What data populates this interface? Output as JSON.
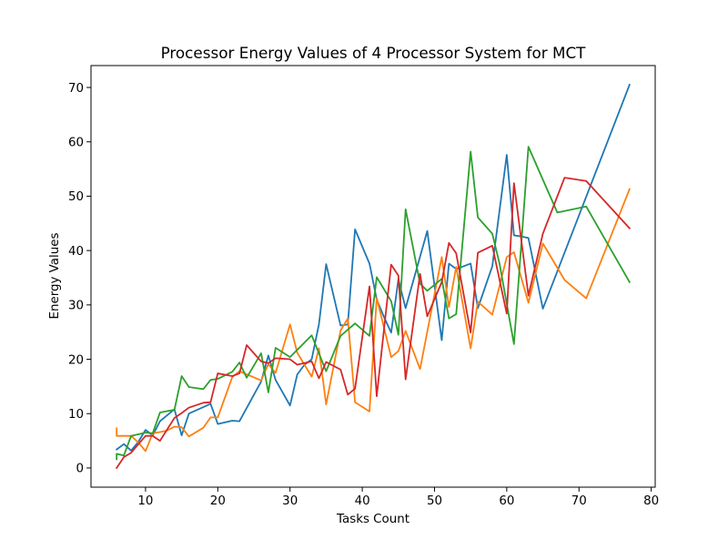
{
  "chart_data": {
    "type": "line",
    "title": "Processor Energy Values of 4 Processor System for MCT",
    "xlabel": "Tasks Count",
    "ylabel": "Energy Values",
    "xlim": [
      2.45,
      80.55
    ],
    "ylim": [
      -3.53,
      74.03
    ],
    "xticks": [
      10,
      20,
      30,
      40,
      50,
      60,
      70,
      80
    ],
    "yticks": [
      0,
      10,
      20,
      30,
      40,
      50,
      60,
      70
    ],
    "grid": false,
    "series": [
      {
        "color": "#1f77b4",
        "points": [
          [
            6,
            3.4
          ],
          [
            7,
            4.4
          ],
          [
            8,
            3.2
          ],
          [
            9,
            4.8
          ],
          [
            10,
            7.0
          ],
          [
            11,
            6.0
          ],
          [
            12,
            8.6
          ],
          [
            14,
            10.8
          ],
          [
            15,
            6.0
          ],
          [
            16,
            10.0
          ],
          [
            18,
            11.2
          ],
          [
            19,
            11.8
          ],
          [
            20,
            8.1
          ],
          [
            22,
            8.7
          ],
          [
            23,
            8.6
          ],
          [
            26,
            15.9
          ],
          [
            27,
            20.7
          ],
          [
            28,
            16.2
          ],
          [
            30,
            11.5
          ],
          [
            31,
            17.2
          ],
          [
            32,
            19.0
          ],
          [
            33,
            20.0
          ],
          [
            34,
            26.4
          ],
          [
            35,
            37.5
          ],
          [
            37,
            26.2
          ],
          [
            38,
            26.4
          ],
          [
            39,
            43.9
          ],
          [
            41,
            37.6
          ],
          [
            42,
            31.0
          ],
          [
            43,
            27.8
          ],
          [
            44,
            24.9
          ],
          [
            45,
            34.7
          ],
          [
            46,
            29.4
          ],
          [
            49,
            43.6
          ],
          [
            51,
            23.5
          ],
          [
            52,
            37.6
          ],
          [
            53,
            36.6
          ],
          [
            55,
            37.6
          ],
          [
            56,
            29.4
          ],
          [
            58,
            37.1
          ],
          [
            60,
            57.6
          ],
          [
            61,
            42.8
          ],
          [
            62,
            42.6
          ],
          [
            63,
            42.3
          ],
          [
            65,
            29.3
          ],
          [
            77,
            70.5
          ]
        ]
      },
      {
        "color": "#ff7f0e",
        "points": [
          [
            6,
            7.3
          ],
          [
            6,
            5.9
          ],
          [
            8,
            5.9
          ],
          [
            9,
            4.7
          ],
          [
            10,
            3.1
          ],
          [
            11,
            6.4
          ],
          [
            12,
            6.6
          ],
          [
            13,
            6.9
          ],
          [
            14,
            7.6
          ],
          [
            15,
            7.5
          ],
          [
            16,
            5.8
          ],
          [
            18,
            7.4
          ],
          [
            19,
            9.3
          ],
          [
            20,
            9.3
          ],
          [
            22,
            16.7
          ],
          [
            23,
            17.8
          ],
          [
            26,
            16.1
          ],
          [
            27,
            19.1
          ],
          [
            28,
            17.5
          ],
          [
            30,
            26.4
          ],
          [
            31,
            21.2
          ],
          [
            33,
            16.8
          ],
          [
            34,
            22.0
          ],
          [
            35,
            11.7
          ],
          [
            37,
            25.3
          ],
          [
            38,
            27.5
          ],
          [
            39,
            12.1
          ],
          [
            41,
            10.4
          ],
          [
            42,
            31.3
          ],
          [
            44,
            20.4
          ],
          [
            45,
            21.5
          ],
          [
            46,
            25.2
          ],
          [
            48,
            18.2
          ],
          [
            51,
            38.8
          ],
          [
            52,
            29.6
          ],
          [
            53,
            37.0
          ],
          [
            55,
            22.0
          ],
          [
            56,
            30.6
          ],
          [
            58,
            28.2
          ],
          [
            60,
            38.8
          ],
          [
            61,
            39.7
          ],
          [
            63,
            30.4
          ],
          [
            65,
            41.3
          ],
          [
            68,
            34.6
          ],
          [
            71,
            31.2
          ],
          [
            77,
            51.3
          ]
        ]
      },
      {
        "color": "#2ca02c",
        "points": [
          [
            6,
            1.6
          ],
          [
            6,
            2.6
          ],
          [
            7,
            2.3
          ],
          [
            8,
            5.9
          ],
          [
            10,
            6.5
          ],
          [
            11,
            6.4
          ],
          [
            12,
            10.2
          ],
          [
            14,
            10.7
          ],
          [
            15,
            16.9
          ],
          [
            16,
            14.9
          ],
          [
            18,
            14.5
          ],
          [
            19,
            16.2
          ],
          [
            20,
            16.4
          ],
          [
            22,
            17.7
          ],
          [
            23,
            19.4
          ],
          [
            24,
            16.6
          ],
          [
            26,
            21.1
          ],
          [
            27,
            13.9
          ],
          [
            28,
            22.1
          ],
          [
            30,
            20.4
          ],
          [
            33,
            24.4
          ],
          [
            35,
            17.8
          ],
          [
            37,
            24.3
          ],
          [
            39,
            26.6
          ],
          [
            41,
            24.3
          ],
          [
            42,
            35.1
          ],
          [
            44,
            30.7
          ],
          [
            45,
            24.5
          ],
          [
            46,
            47.6
          ],
          [
            48,
            33.9
          ],
          [
            49,
            32.6
          ],
          [
            51,
            34.8
          ],
          [
            52,
            27.5
          ],
          [
            53,
            28.3
          ],
          [
            55,
            58.2
          ],
          [
            56,
            46.1
          ],
          [
            58,
            43.1
          ],
          [
            59,
            37.6
          ],
          [
            61,
            22.8
          ],
          [
            63,
            59.1
          ],
          [
            67,
            47.0
          ],
          [
            71,
            48.1
          ],
          [
            77,
            34.2
          ]
        ]
      },
      {
        "color": "#d62728",
        "points": [
          [
            6,
            0.0
          ],
          [
            7,
            2.0
          ],
          [
            8,
            2.8
          ],
          [
            10,
            5.9
          ],
          [
            11,
            5.9
          ],
          [
            12,
            5.0
          ],
          [
            14,
            9.2
          ],
          [
            15,
            10.1
          ],
          [
            16,
            11.1
          ],
          [
            18,
            12.0
          ],
          [
            19,
            12.1
          ],
          [
            20,
            17.4
          ],
          [
            22,
            16.9
          ],
          [
            23,
            17.4
          ],
          [
            24,
            22.6
          ],
          [
            26,
            19.6
          ],
          [
            27,
            19.3
          ],
          [
            28,
            20.2
          ],
          [
            30,
            20.0
          ],
          [
            31,
            19.0
          ],
          [
            33,
            19.6
          ],
          [
            34,
            16.5
          ],
          [
            35,
            19.5
          ],
          [
            37,
            18.1
          ],
          [
            38,
            13.5
          ],
          [
            39,
            14.6
          ],
          [
            41,
            33.4
          ],
          [
            42,
            13.2
          ],
          [
            43,
            25.4
          ],
          [
            44,
            37.4
          ],
          [
            45,
            35.4
          ],
          [
            46,
            16.3
          ],
          [
            48,
            35.7
          ],
          [
            49,
            27.9
          ],
          [
            51,
            34.2
          ],
          [
            52,
            41.4
          ],
          [
            53,
            39.5
          ],
          [
            55,
            24.9
          ],
          [
            56,
            39.6
          ],
          [
            58,
            40.9
          ],
          [
            60,
            28.4
          ],
          [
            61,
            52.4
          ],
          [
            63,
            31.7
          ],
          [
            65,
            43.1
          ],
          [
            68,
            53.4
          ],
          [
            71,
            52.8
          ],
          [
            77,
            44.1
          ]
        ]
      }
    ]
  }
}
